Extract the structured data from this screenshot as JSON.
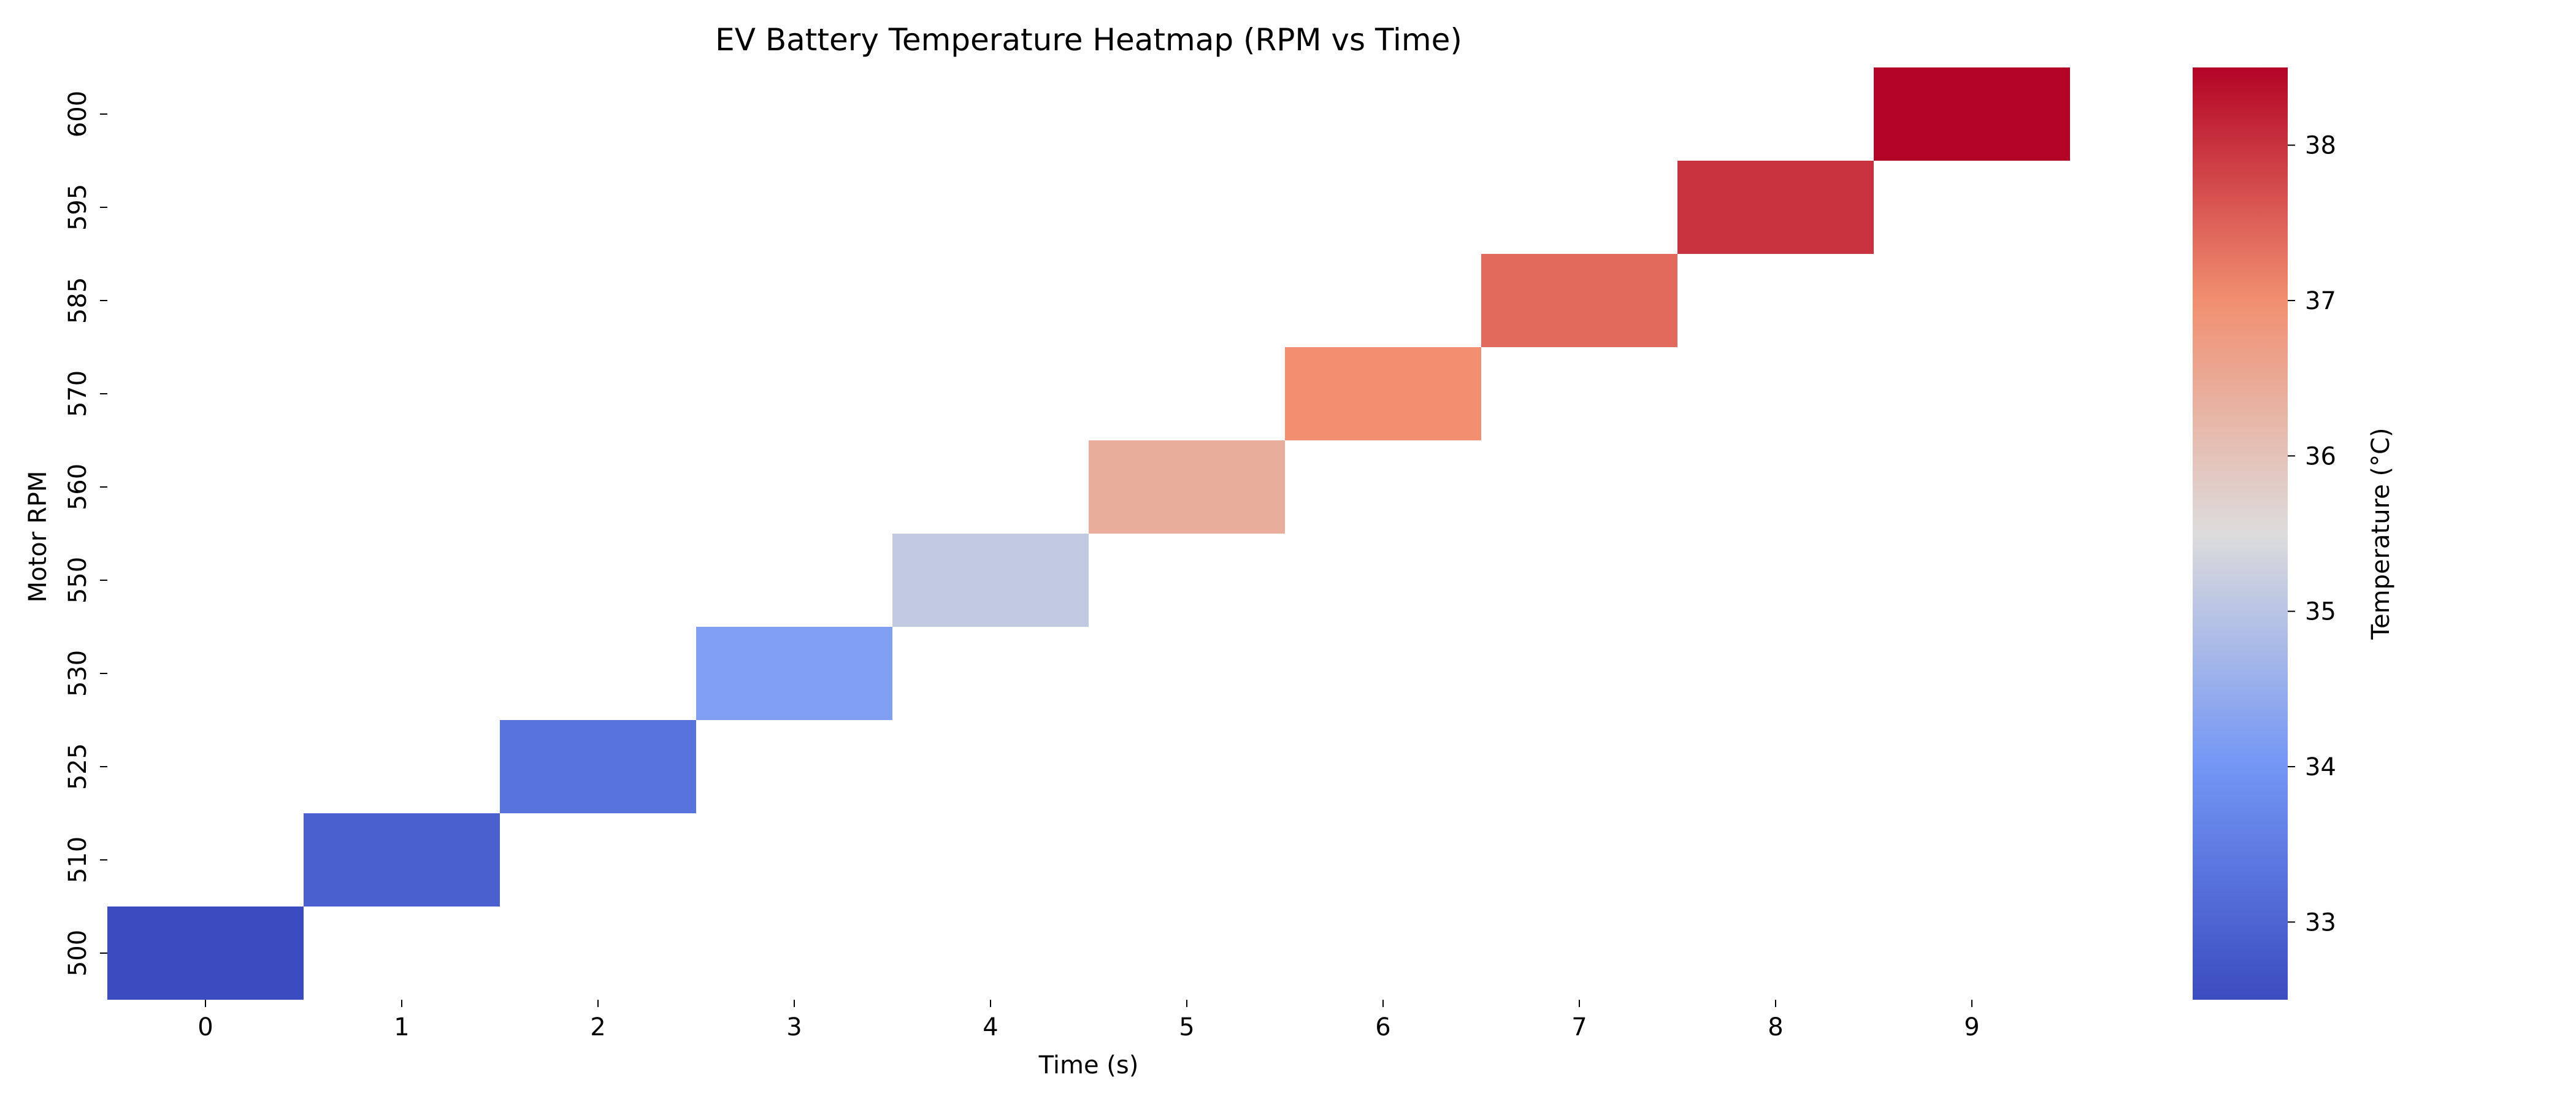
{
  "chart_data": {
    "type": "heatmap",
    "title": "EV Battery Temperature Heatmap (RPM vs Time)",
    "xlabel": "Time (s)",
    "ylabel": "Motor RPM",
    "x_categories": [
      "0",
      "1",
      "2",
      "3",
      "4",
      "5",
      "6",
      "7",
      "8",
      "9"
    ],
    "y_categories": [
      "500",
      "510",
      "525",
      "530",
      "550",
      "560",
      "570",
      "585",
      "595",
      "600"
    ],
    "cells": [
      {
        "x": "0",
        "y": "500",
        "value": 32.5
      },
      {
        "x": "1",
        "y": "510",
        "value": 32.9
      },
      {
        "x": "2",
        "y": "525",
        "value": 33.3
      },
      {
        "x": "3",
        "y": "530",
        "value": 34.2
      },
      {
        "x": "4",
        "y": "550",
        "value": 35.1
      },
      {
        "x": "5",
        "y": "560",
        "value": 36.4
      },
      {
        "x": "6",
        "y": "570",
        "value": 37.0
      },
      {
        "x": "7",
        "y": "585",
        "value": 37.4
      },
      {
        "x": "8",
        "y": "595",
        "value": 38.0
      },
      {
        "x": "9",
        "y": "600",
        "value": 38.5
      }
    ],
    "colorbar": {
      "label": "Temperature (°C)",
      "vmin": 32.5,
      "vmax": 38.5,
      "ticks": [
        33,
        34,
        35,
        36,
        37,
        38
      ],
      "colormap": "coolwarm"
    },
    "colormap_stops": [
      {
        "t": 0.0,
        "color": "#3b4cc0"
      },
      {
        "t": 0.25,
        "color": "#7396f5"
      },
      {
        "t": 0.5,
        "color": "#dddcdc"
      },
      {
        "t": 0.75,
        "color": "#f18f70"
      },
      {
        "t": 1.0,
        "color": "#b40426"
      }
    ],
    "empty_cells": "blank"
  }
}
